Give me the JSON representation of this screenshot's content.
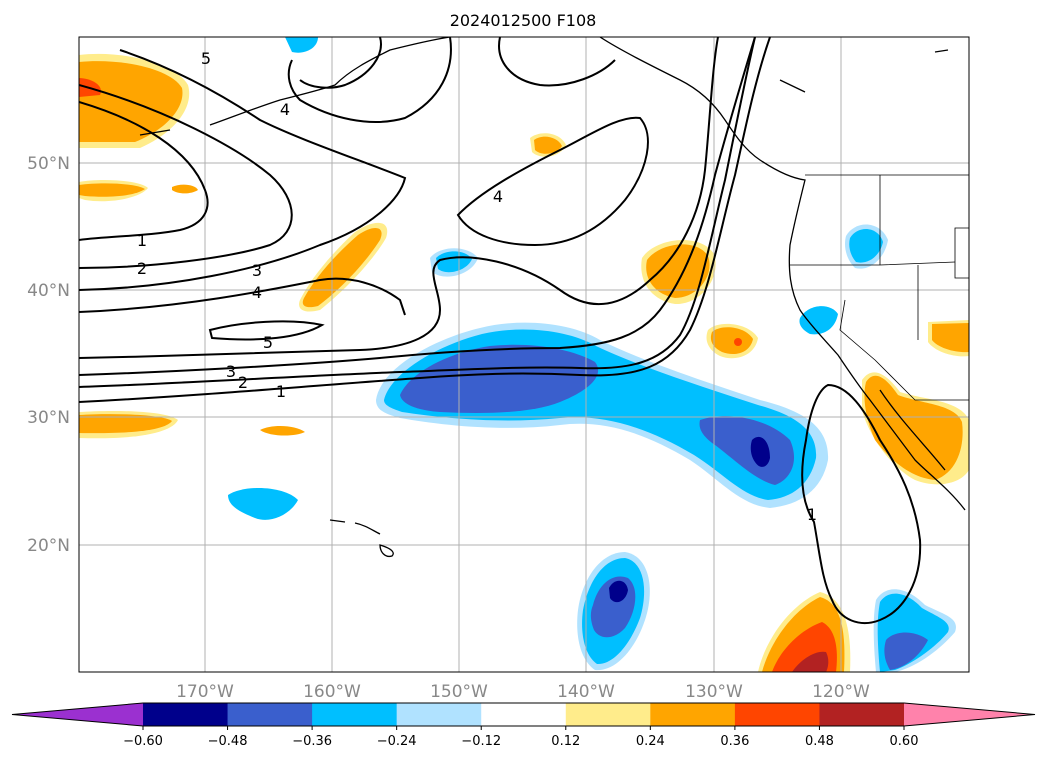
{
  "title": "2024012500 F108",
  "lat_labels": [
    "50°N",
    "40°N",
    "30°N",
    "20°N"
  ],
  "lon_labels": [
    "170°W",
    "160°W",
    "150°W",
    "140°W",
    "130°W",
    "120°W"
  ],
  "colorbar": {
    "ticks": [
      "−0.60",
      "−0.48",
      "−0.36",
      "−0.24",
      "−0.12",
      "0.12",
      "0.24",
      "0.36",
      "0.48",
      "0.60"
    ],
    "colors": [
      "#9b30d0",
      "#00008b",
      "#3a5fcd",
      "#00bfff",
      "#b0e2ff",
      "#ffffff",
      "#ffec8b",
      "#ffa500",
      "#ff4500",
      "#b22222",
      "#ff82ab"
    ]
  },
  "contour_labels": [
    "5",
    "4",
    "1",
    "2",
    "3",
    "4",
    "5",
    "3",
    "2",
    "1",
    "4",
    "1"
  ],
  "colors": {
    "land_outline": "#000000",
    "grid": "#b0b0b0",
    "contour": "#000000"
  }
}
